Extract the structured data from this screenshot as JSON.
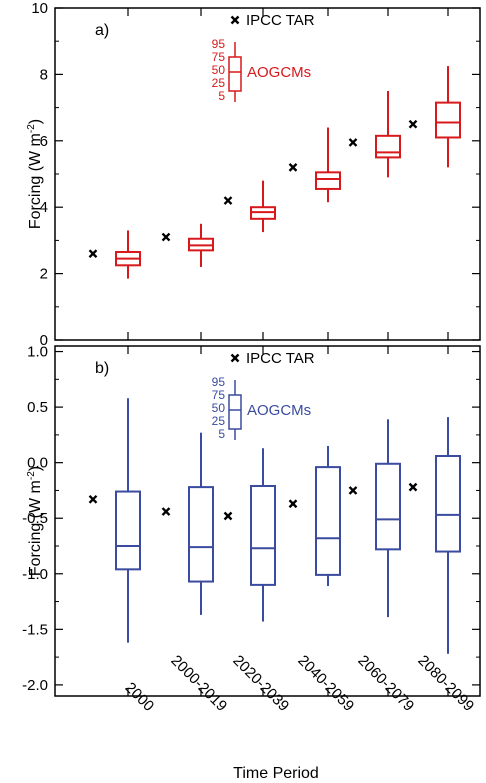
{
  "chart_data": [
    {
      "type": "box",
      "panel_label": "a)",
      "ylabel": "Forcing (W m",
      "ylabel_sup": "-2",
      "ylabel_close": ")",
      "ylim": [
        0,
        10
      ],
      "yticks": [
        "0",
        "2",
        "4",
        "6",
        "8",
        "10"
      ],
      "ytick_values": [
        0,
        2,
        4,
        6,
        8,
        10
      ],
      "color": "#d7191c",
      "categories": [
        "2000",
        "2000-2019",
        "2020-2039",
        "2040-2059",
        "2060-2079",
        "2080-2099"
      ],
      "ipcc_tar": [
        2.6,
        3.1,
        4.2,
        5.2,
        5.95,
        6.5
      ],
      "boxes": [
        {
          "p5": 1.85,
          "p25": 2.25,
          "p50": 2.45,
          "p75": 2.65,
          "p95": 3.3
        },
        {
          "p5": 2.2,
          "p25": 2.7,
          "p50": 2.85,
          "p75": 3.05,
          "p95": 3.5
        },
        {
          "p5": 3.25,
          "p25": 3.65,
          "p50": 3.85,
          "p75": 4.0,
          "p95": 4.8
        },
        {
          "p5": 4.15,
          "p25": 4.55,
          "p50": 4.85,
          "p75": 5.05,
          "p95": 6.4
        },
        {
          "p5": 4.9,
          "p25": 5.5,
          "p50": 5.65,
          "p75": 6.15,
          "p95": 7.5
        },
        {
          "p5": 5.2,
          "p25": 6.1,
          "p50": 6.55,
          "p75": 7.15,
          "p95": 8.25
        }
      ],
      "legend": {
        "marker_label": "IPCC TAR",
        "box_label": "AOGCMs",
        "percentiles": [
          "95",
          "75",
          "50",
          "25",
          "5"
        ]
      }
    },
    {
      "type": "box",
      "panel_label": "b)",
      "ylabel": "Forcing (W m",
      "ylabel_sup": "-2",
      "ylabel_close": ")",
      "ylim": [
        -2.1,
        1.05
      ],
      "yticks": [
        "-2.0",
        "-1.5",
        "-1.0",
        "-0.5",
        "0.0",
        "0.5",
        "1.0"
      ],
      "ytick_values": [
        -2.0,
        -1.5,
        -1.0,
        -0.5,
        0.0,
        0.5,
        1.0
      ],
      "color": "#3a4ba0",
      "xlabel": "Time Period",
      "categories": [
        "2000",
        "2000-2019",
        "2020-2039",
        "2040-2059",
        "2060-2079",
        "2080-2099"
      ],
      "ipcc_tar": [
        -0.33,
        -0.44,
        -0.48,
        -0.37,
        -0.25,
        -0.22
      ],
      "boxes": [
        {
          "p5": -1.62,
          "p25": -0.96,
          "p50": -0.75,
          "p75": -0.26,
          "p95": 0.58
        },
        {
          "p5": -1.37,
          "p25": -1.07,
          "p50": -0.76,
          "p75": -0.22,
          "p95": 0.27
        },
        {
          "p5": -1.43,
          "p25": -1.1,
          "p50": -0.77,
          "p75": -0.21,
          "p95": 0.13
        },
        {
          "p5": -1.11,
          "p25": -1.01,
          "p50": -0.68,
          "p75": -0.04,
          "p95": 0.15
        },
        {
          "p5": -1.39,
          "p25": -0.78,
          "p50": -0.51,
          "p75": -0.01,
          "p95": 0.39
        },
        {
          "p5": -1.72,
          "p25": -0.8,
          "p50": -0.47,
          "p75": 0.06,
          "p95": 0.41
        }
      ],
      "legend": {
        "marker_label": "IPCC TAR",
        "box_label": "AOGCMs",
        "percentiles": [
          "95",
          "75",
          "50",
          "25",
          "5"
        ]
      }
    }
  ]
}
